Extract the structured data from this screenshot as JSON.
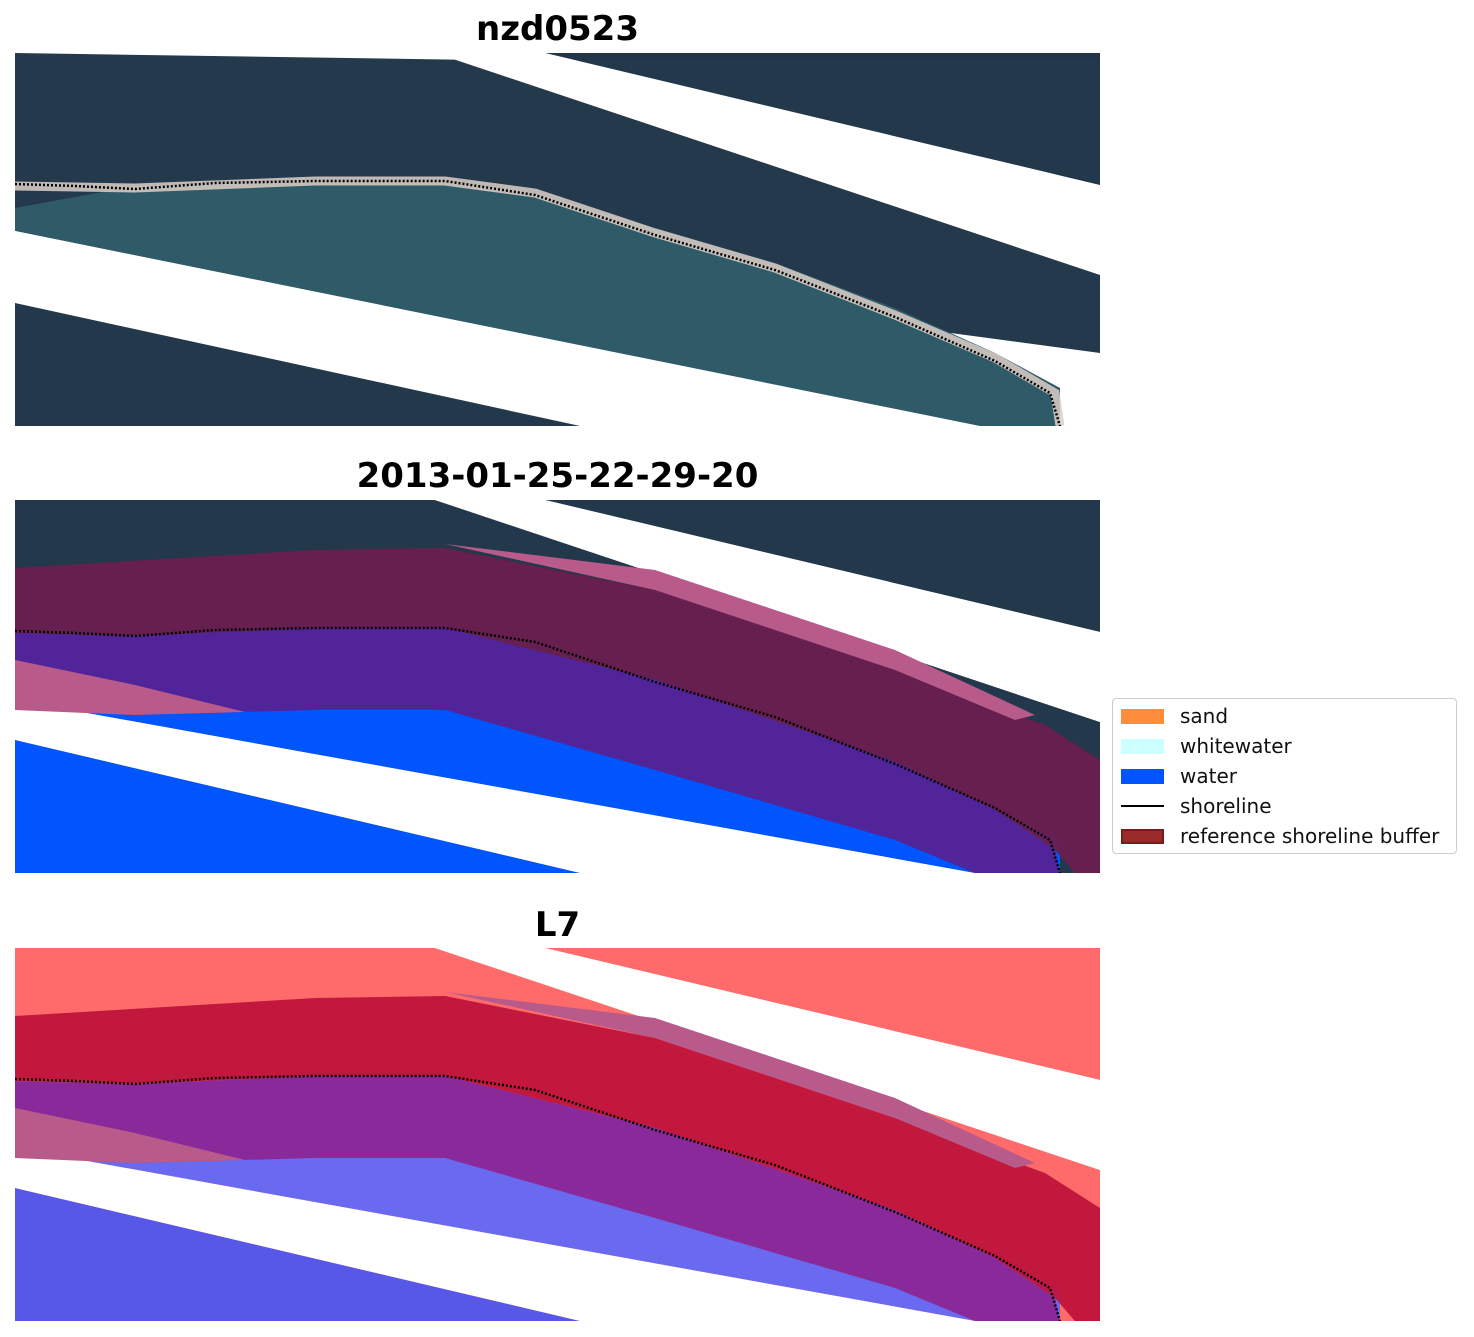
{
  "panels": [
    {
      "title": "nzd0523",
      "style": "rgb"
    },
    {
      "title": "2013-01-25-22-29-20",
      "style": "classified"
    },
    {
      "title": "L7",
      "style": "index"
    }
  ],
  "legend": {
    "items": [
      {
        "label": "sand",
        "kind": "patch",
        "color": "#ff8c3a"
      },
      {
        "label": "whitewater",
        "kind": "patch",
        "color": "#ccffff"
      },
      {
        "label": "water",
        "kind": "patch",
        "color": "#0055ff"
      },
      {
        "label": "shoreline",
        "kind": "line",
        "color": "#000000"
      },
      {
        "label": "reference shoreline buffer",
        "kind": "patch",
        "color": "#9b2b2b",
        "edge": "#7a1a1a"
      }
    ]
  },
  "colors": {
    "land_dark": "#23384a",
    "lagoon": "#2f5a68",
    "sand_bright": "#e8d8d0",
    "water_class": "#0055ff",
    "buffer_over_land": "#6a1d4e",
    "buffer_over_water": "#52249a",
    "buffer_pink": "#b85a8a",
    "index_red": "#ff5a5a",
    "index_blue": "#6a6af0",
    "index_buffer_red": "#c0143c",
    "index_buffer_purple": "#8a2a9a"
  }
}
